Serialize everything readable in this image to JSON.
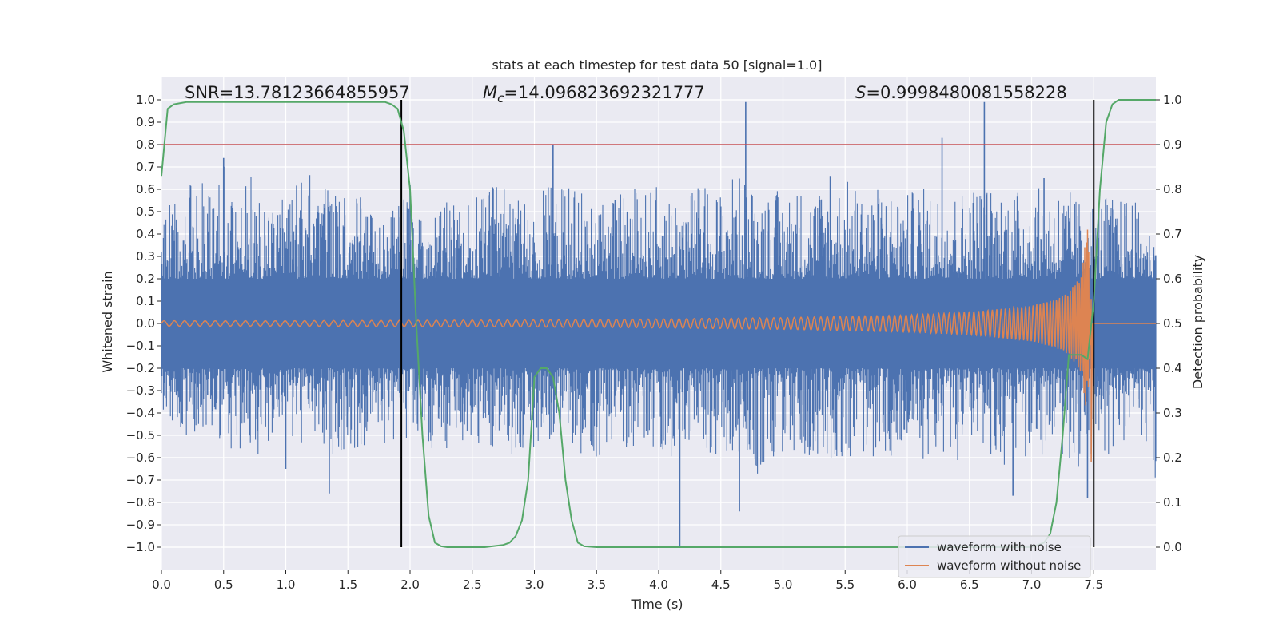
{
  "chart_data": {
    "type": "line",
    "title": "stats at each timestep for test data 50 [signal=1.0]",
    "xlabel": "Time (s)",
    "ylabel": "Whitened strain",
    "y2label": "Detection probability",
    "xlim": [
      0.0,
      8.0
    ],
    "ylim": [
      -1.1,
      1.1
    ],
    "y2lim": [
      -0.05,
      1.05
    ],
    "xticks": [
      "0.0",
      "0.5",
      "1.0",
      "1.5",
      "2.0",
      "2.5",
      "3.0",
      "3.5",
      "4.0",
      "4.5",
      "5.0",
      "5.5",
      "6.0",
      "6.5",
      "7.0",
      "7.5"
    ],
    "yticks": [
      "1.0",
      "0.9",
      "0.8",
      "0.7",
      "0.6",
      "0.5",
      "0.4",
      "0.3",
      "0.2",
      "0.1",
      "0.0",
      "−0.1",
      "−0.2",
      "−0.3",
      "−0.4",
      "−0.5",
      "−0.6",
      "−0.7",
      "−0.8",
      "−0.9",
      "−1.0"
    ],
    "y2ticks": [
      "1.0",
      "0.9",
      "0.8",
      "0.7",
      "0.6",
      "0.5",
      "0.4",
      "0.3",
      "0.2",
      "0.1",
      "0.0"
    ],
    "grid": true,
    "legend_position": "lower-right",
    "annotations": {
      "snr_text": "SNR=13.78123664855957",
      "mc_symbol": "M",
      "mc_sub": "c",
      "mc_value": "=14.096823692321777",
      "s_symbol": "S",
      "s_value": "=0.9998480081558228"
    },
    "threshold": {
      "axis": "right",
      "y": 0.9,
      "color": "#c44e52"
    },
    "vertical_markers": [
      {
        "x": 1.93,
        "color": "#000000"
      },
      {
        "x": 7.5,
        "color": "#000000"
      }
    ],
    "noise_extremes": {
      "max": 0.99,
      "min": -1.0
    },
    "series": [
      {
        "name": "waveform with noise",
        "color": "#4c72b0",
        "axis": "left",
        "envelope": [
          [
            0.0,
            0.43,
            -0.42
          ],
          [
            0.1,
            0.6,
            -0.45
          ],
          [
            0.2,
            0.62,
            -0.52
          ],
          [
            0.3,
            0.65,
            -0.48
          ],
          [
            0.4,
            0.58,
            -0.5
          ],
          [
            0.5,
            0.72,
            -0.55
          ],
          [
            0.6,
            0.6,
            -0.62
          ],
          [
            0.7,
            0.68,
            -0.52
          ],
          [
            0.8,
            0.58,
            -0.62
          ],
          [
            0.9,
            0.55,
            -0.5
          ],
          [
            1.0,
            0.58,
            -0.45
          ],
          [
            1.1,
            0.63,
            -0.55
          ],
          [
            1.2,
            0.7,
            -0.5
          ],
          [
            1.3,
            0.68,
            -0.55
          ],
          [
            1.4,
            0.62,
            -0.6
          ],
          [
            1.5,
            0.58,
            -0.55
          ],
          [
            1.6,
            0.62,
            -0.58
          ],
          [
            1.7,
            0.6,
            -0.5
          ],
          [
            1.8,
            0.58,
            -0.55
          ],
          [
            1.9,
            0.62,
            -0.52
          ],
          [
            2.0,
            0.55,
            -0.55
          ],
          [
            2.1,
            0.45,
            -0.58
          ],
          [
            2.2,
            0.5,
            -0.55
          ],
          [
            2.3,
            0.55,
            -0.58
          ],
          [
            2.4,
            0.52,
            -0.6
          ],
          [
            2.5,
            0.55,
            -0.55
          ],
          [
            2.6,
            0.6,
            -0.6
          ],
          [
            2.7,
            0.62,
            -0.58
          ],
          [
            2.8,
            0.6,
            -0.58
          ],
          [
            2.9,
            0.55,
            -0.62
          ],
          [
            3.0,
            0.58,
            -0.55
          ],
          [
            3.1,
            0.62,
            -0.5
          ],
          [
            3.2,
            0.6,
            -0.58
          ],
          [
            3.3,
            0.62,
            -0.55
          ],
          [
            3.4,
            0.58,
            -0.6
          ],
          [
            3.5,
            0.6,
            -0.62
          ],
          [
            3.6,
            0.55,
            -0.6
          ],
          [
            3.7,
            0.58,
            -0.58
          ],
          [
            3.8,
            0.62,
            -0.6
          ],
          [
            3.9,
            0.6,
            -0.62
          ],
          [
            4.0,
            0.62,
            -0.58
          ],
          [
            4.1,
            0.58,
            -0.6
          ],
          [
            4.2,
            0.6,
            -0.62
          ],
          [
            4.3,
            0.62,
            -0.6
          ],
          [
            4.4,
            0.62,
            -0.62
          ],
          [
            4.5,
            0.6,
            -0.6
          ],
          [
            4.6,
            0.68,
            -0.62
          ],
          [
            4.7,
            0.65,
            -0.6
          ],
          [
            4.8,
            0.6,
            -0.7
          ],
          [
            4.9,
            0.62,
            -0.62
          ],
          [
            5.0,
            0.58,
            -0.6
          ],
          [
            5.1,
            0.62,
            -0.62
          ],
          [
            5.2,
            0.6,
            -0.6
          ],
          [
            5.3,
            0.62,
            -0.58
          ],
          [
            5.4,
            0.6,
            -0.62
          ],
          [
            5.5,
            0.65,
            -0.6
          ],
          [
            5.6,
            0.62,
            -0.62
          ],
          [
            5.7,
            0.6,
            -0.6
          ],
          [
            5.8,
            0.62,
            -0.6
          ],
          [
            5.9,
            0.6,
            -0.62
          ],
          [
            6.0,
            0.58,
            -0.6
          ],
          [
            6.1,
            0.62,
            -0.62
          ],
          [
            6.2,
            0.6,
            -0.6
          ],
          [
            6.3,
            0.6,
            -0.62
          ],
          [
            6.4,
            0.6,
            -0.62
          ],
          [
            6.5,
            0.62,
            -0.6
          ],
          [
            6.6,
            0.65,
            -0.62
          ],
          [
            6.7,
            0.6,
            -0.6
          ],
          [
            6.8,
            0.62,
            -0.65
          ],
          [
            6.9,
            0.6,
            -0.62
          ],
          [
            7.0,
            0.62,
            -0.6
          ],
          [
            7.1,
            0.6,
            -0.62
          ],
          [
            7.2,
            0.62,
            -0.6
          ],
          [
            7.3,
            0.6,
            -0.62
          ],
          [
            7.4,
            0.55,
            -0.7
          ],
          [
            7.5,
            0.55,
            -0.55
          ],
          [
            7.6,
            0.58,
            -0.6
          ],
          [
            7.7,
            0.55,
            -0.55
          ],
          [
            7.8,
            0.6,
            -0.55
          ],
          [
            7.9,
            0.45,
            -0.5
          ],
          [
            8.0,
            0.4,
            -0.75
          ]
        ],
        "spikes": [
          [
            0.5,
            0.74
          ],
          [
            1.35,
            -0.76
          ],
          [
            3.15,
            0.8
          ],
          [
            4.17,
            -1.0
          ],
          [
            4.7,
            0.99
          ],
          [
            4.65,
            -0.84
          ],
          [
            6.28,
            0.83
          ],
          [
            6.62,
            0.99
          ],
          [
            6.85,
            -0.77
          ],
          [
            7.45,
            -0.78
          ],
          [
            1.0,
            -0.65
          ],
          [
            2.0,
            0.62
          ],
          [
            5.38,
            0.66
          ],
          [
            7.1,
            0.65
          ]
        ]
      },
      {
        "name": "waveform without noise",
        "color": "#dd8452",
        "axis": "left",
        "amplitude_samples": [
          [
            0.0,
            0.012
          ],
          [
            1.0,
            0.012
          ],
          [
            2.0,
            0.014
          ],
          [
            3.0,
            0.016
          ],
          [
            4.0,
            0.02
          ],
          [
            5.0,
            0.026
          ],
          [
            6.0,
            0.038
          ],
          [
            6.5,
            0.05
          ],
          [
            7.0,
            0.08
          ],
          [
            7.2,
            0.11
          ],
          [
            7.3,
            0.14
          ],
          [
            7.4,
            0.22
          ],
          [
            7.45,
            0.44
          ],
          [
            7.48,
            0.1
          ],
          [
            7.5,
            0.0
          ],
          [
            8.0,
            0.0
          ]
        ],
        "min_value": -0.62
      },
      {
        "name": "detection probability",
        "color": "#55a868",
        "axis": "right",
        "x": [
          0.0,
          0.05,
          0.1,
          0.2,
          0.4,
          0.8,
          1.2,
          1.6,
          1.8,
          1.85,
          1.9,
          1.95,
          2.0,
          2.05,
          2.1,
          2.15,
          2.2,
          2.25,
          2.3,
          2.6,
          2.75,
          2.8,
          2.85,
          2.9,
          2.95,
          3.0,
          3.05,
          3.1,
          3.15,
          3.2,
          3.25,
          3.3,
          3.35,
          3.4,
          3.5,
          4.0,
          5.0,
          6.0,
          7.0,
          7.1,
          7.15,
          7.2,
          7.25,
          7.3,
          7.35,
          7.4,
          7.45,
          7.5,
          7.55,
          7.6,
          7.65,
          7.7,
          8.0
        ],
        "y": [
          0.83,
          0.98,
          0.99,
          0.995,
          0.995,
          0.995,
          0.995,
          0.995,
          0.995,
          0.99,
          0.98,
          0.93,
          0.8,
          0.5,
          0.25,
          0.07,
          0.01,
          0.002,
          0.0,
          0.0,
          0.005,
          0.01,
          0.025,
          0.06,
          0.15,
          0.38,
          0.4,
          0.4,
          0.38,
          0.3,
          0.15,
          0.06,
          0.01,
          0.002,
          0.0,
          0.0,
          0.0,
          0.0,
          0.0,
          0.01,
          0.03,
          0.1,
          0.25,
          0.43,
          0.43,
          0.43,
          0.42,
          0.55,
          0.8,
          0.95,
          0.99,
          1.0,
          1.0
        ]
      }
    ]
  }
}
